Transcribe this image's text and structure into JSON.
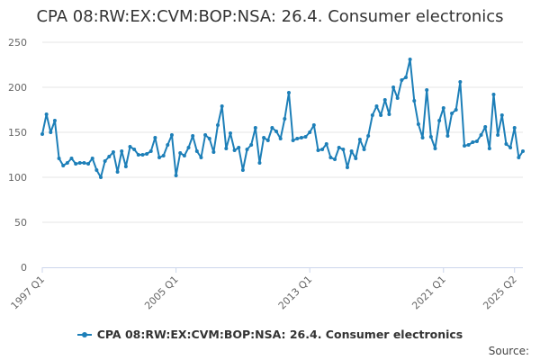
{
  "source_label": "Source:",
  "chart_data": {
    "type": "line",
    "title": "CPA 08:RW:EX:CVM:BOP:NSA: 26.4. Consumer electronics",
    "xlabel": "",
    "ylabel": "",
    "ylim": [
      0,
      250
    ],
    "yticks": [
      0,
      50,
      100,
      150,
      200,
      250
    ],
    "xtick_labels": [
      "1997 Q1",
      "2005 Q1",
      "2013 Q1",
      "2021 Q1",
      "2025 Q2"
    ],
    "x_start": "1997 Q1",
    "x_end": "2025 Q2",
    "grid": true,
    "legend": "bottom",
    "color": "#1d7fb8",
    "series": [
      {
        "name": "CPA 08:RW:EX:CVM:BOP:NSA: 26.4. Consumer electronics",
        "values": [
          148,
          170,
          150,
          163,
          121,
          113,
          116,
          121,
          115,
          116,
          116,
          115,
          121,
          108,
          100,
          118,
          123,
          128,
          106,
          129,
          112,
          134,
          131,
          125,
          125,
          126,
          129,
          144,
          122,
          124,
          136,
          147,
          102,
          127,
          124,
          133,
          146,
          129,
          122,
          147,
          143,
          128,
          158,
          179,
          132,
          149,
          130,
          133,
          108,
          131,
          136,
          155,
          116,
          144,
          141,
          155,
          151,
          143,
          165,
          194,
          141,
          143,
          144,
          145,
          150,
          158,
          130,
          131,
          137,
          122,
          120,
          133,
          131,
          111,
          129,
          121,
          142,
          131,
          146,
          169,
          179,
          169,
          186,
          170,
          200,
          188,
          208,
          211,
          231,
          185,
          159,
          144,
          197,
          145,
          132,
          163,
          177,
          146,
          171,
          175,
          206,
          135,
          136,
          139,
          140,
          147,
          156,
          132,
          192,
          147,
          169,
          137,
          133,
          155,
          122,
          129
        ]
      }
    ]
  }
}
